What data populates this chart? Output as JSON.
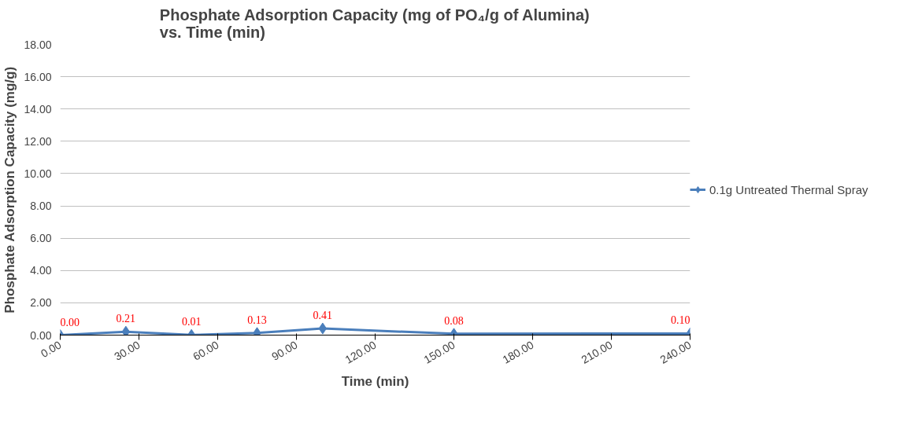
{
  "chart_data": {
    "type": "line",
    "title": "Phosphate Adsorption Capacity (mg of PO₄/g of Alumina)\nvs. Time (min)",
    "xlabel": "Time (min)",
    "ylabel": "Phosphate Adsorption Capacity (mg/g)",
    "x": [
      0,
      25,
      50,
      75,
      100,
      150,
      240
    ],
    "series": [
      {
        "name": "0.1g Untreated Thermal Spray",
        "color": "#4a7ebb",
        "values": [
          0.0,
          0.21,
          0.01,
          0.13,
          0.41,
          0.08,
          0.1
        ],
        "value_labels": [
          "0.00",
          "0.21",
          "0.01",
          "0.13",
          "0.41",
          "0.08",
          "0.10"
        ]
      }
    ],
    "xlim": [
      0,
      240
    ],
    "xticks": [
      {
        "value": 0,
        "label": "0.00"
      },
      {
        "value": 30,
        "label": "30.00"
      },
      {
        "value": 60,
        "label": "60.00"
      },
      {
        "value": 90,
        "label": "90.00"
      },
      {
        "value": 120,
        "label": "120.00"
      },
      {
        "value": 150,
        "label": "150.00"
      },
      {
        "value": 180,
        "label": "180.00"
      },
      {
        "value": 210,
        "label": "210.00"
      },
      {
        "value": 240,
        "label": "240.00"
      }
    ],
    "ylim": [
      0,
      18
    ],
    "yticks": [
      {
        "value": 0,
        "label": "0.00"
      },
      {
        "value": 2,
        "label": "2.00"
      },
      {
        "value": 4,
        "label": "4.00"
      },
      {
        "value": 6,
        "label": "6.00"
      },
      {
        "value": 8,
        "label": "8.00"
      },
      {
        "value": 10,
        "label": "10.00"
      },
      {
        "value": 12,
        "label": "12.00"
      },
      {
        "value": 14,
        "label": "14.00"
      },
      {
        "value": 16,
        "label": "16.00"
      },
      {
        "value": 18,
        "label": "18.00"
      }
    ],
    "grid": "y",
    "legend": "right",
    "marker": "diamond",
    "line_style": "solid",
    "data_labels": true
  }
}
